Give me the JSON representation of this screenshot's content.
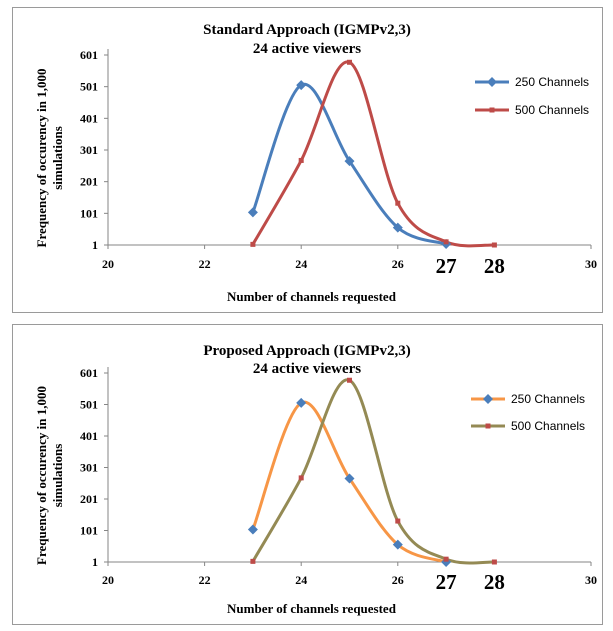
{
  "colors": {
    "chart1_series1": "#4a7ebb",
    "chart1_series2": "#be4b48",
    "chart2_series1": "#f79646",
    "chart2_series2": "#948a54",
    "axis": "#868686",
    "marker_square": "#be4b48",
    "marker_diamond": "#4a7ebb"
  },
  "chart_data": [
    {
      "type": "line",
      "smooth": true,
      "title": "Standard Approach (IGMPv2,3)",
      "subtitle": "24 active viewers",
      "xlabel": "Number of channels requested",
      "ylabel": "Frequency of occurency in 1,000 simulations",
      "xlim": [
        20,
        30
      ],
      "ylim": [
        1,
        601
      ],
      "xticks": [
        "20",
        "22",
        "24",
        "26",
        "27",
        "28",
        "30"
      ],
      "yticks": [
        "1",
        "101",
        "201",
        "301",
        "401",
        "501",
        "601"
      ],
      "grid": false,
      "legend_position": "right",
      "series": [
        {
          "name": "250 Channels",
          "marker": "diamond",
          "x": [
            23,
            24,
            25,
            26,
            27
          ],
          "y": [
            104,
            506,
            266,
            56,
            4
          ]
        },
        {
          "name": "500 Channels",
          "marker": "square",
          "x": [
            23,
            24,
            25,
            26,
            27,
            28
          ],
          "y": [
            3,
            268,
            578,
            133,
            11,
            1
          ]
        }
      ]
    },
    {
      "type": "line",
      "smooth": true,
      "title": "Proposed Approach (IGMPv2,3)",
      "subtitle": "24 active viewers",
      "xlabel": "Number of channels requested",
      "ylabel": "Frequency of occurency in 1,000 simulations",
      "xlim": [
        20,
        30
      ],
      "ylim": [
        1,
        601
      ],
      "xticks": [
        "20",
        "22",
        "24",
        "26",
        "27",
        "28",
        "30"
      ],
      "yticks": [
        "1",
        "101",
        "201",
        "301",
        "401",
        "501",
        "601"
      ],
      "grid": false,
      "legend_position": "right",
      "series": [
        {
          "name": "250 Channels",
          "marker": "diamond",
          "x": [
            23,
            24,
            25,
            26,
            27
          ],
          "y": [
            104,
            506,
            266,
            56,
            1
          ]
        },
        {
          "name": "500 Channels",
          "marker": "square",
          "x": [
            23,
            24,
            25,
            26,
            27,
            28
          ],
          "y": [
            3,
            268,
            578,
            131,
            10,
            1
          ]
        }
      ]
    }
  ]
}
